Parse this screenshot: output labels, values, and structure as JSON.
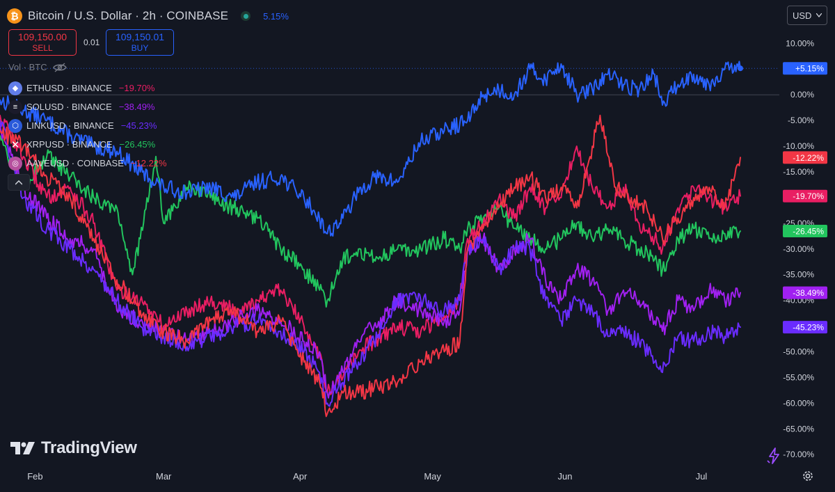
{
  "header": {
    "title": "Bitcoin / U.S. Dollar · 2h · COINBASE",
    "change": "5.15%"
  },
  "trade": {
    "sell_price": "109,150.00",
    "sell_label": "SELL",
    "spread": "0.01",
    "buy_price": "109,150.01",
    "buy_label": "BUY"
  },
  "currency": "USD",
  "vol_label": "Vol · BTC",
  "legend": [
    {
      "symbol": "ETHUSD · BINANCE",
      "value": "−19.70%",
      "color": "#e91e63",
      "icon": "ethereum-icon"
    },
    {
      "symbol": "SOLUSD · BINANCE",
      "value": "−38.49%",
      "color": "#a020f0",
      "icon": "solana-icon"
    },
    {
      "symbol": "LINKUSD · BINANCE",
      "value": "−45.23%",
      "color": "#6a2cff",
      "icon": "chainlink-icon"
    },
    {
      "symbol": "XRPUSD · BINANCE",
      "value": "−26.45%",
      "color": "#22c55e",
      "icon": "xrp-icon"
    },
    {
      "symbol": "AAVEUSD · COINBASE",
      "value": "−12.22%",
      "color": "#f23645",
      "icon": "aave-icon"
    }
  ],
  "logo": "TradingView",
  "chart_data": {
    "type": "line",
    "title": "Bitcoin / U.S. Dollar · 2h · COINBASE",
    "ylabel": "",
    "ylim": [
      -72,
      11
    ],
    "xlim": [
      0,
      100
    ],
    "y_ticks": [
      "10.00%",
      "5.00%",
      "0.00%",
      "-5.00%",
      "-10.00%",
      "-15.00%",
      "-20.00%",
      "-25.00%",
      "-30.00%",
      "-35.00%",
      "-40.00%",
      "-45.00%",
      "-50.00%",
      "-55.00%",
      "-60.00%",
      "-65.00%",
      "-70.00%"
    ],
    "y_tick_values": [
      10,
      5,
      0,
      -5,
      -10,
      -15,
      -20,
      -25,
      -30,
      -35,
      -40,
      -45,
      -50,
      -55,
      -60,
      -65,
      -70
    ],
    "x_ticks": [
      "Feb",
      "Mar",
      "Apr",
      "May",
      "Jun",
      "Jul"
    ],
    "x_tick_values": [
      4.5,
      21,
      38.5,
      55.5,
      72.5,
      90
    ],
    "grid": false,
    "series": [
      {
        "name": "BTCUSD",
        "color": "#2962ff",
        "label": "+5.15%",
        "x": [
          0,
          3,
          6,
          9,
          12,
          15,
          18,
          21,
          24,
          27,
          30,
          33,
          36,
          39,
          41,
          42,
          44,
          46,
          48,
          51,
          54,
          57,
          60,
          62,
          64,
          66,
          68,
          70,
          72,
          74,
          76,
          78,
          80,
          82,
          84,
          85,
          87,
          89,
          91,
          93,
          95
        ],
        "y": [
          -1,
          -3,
          -5,
          -8,
          -10,
          -11,
          -15,
          -18,
          -19,
          -18,
          -20,
          -17,
          -16,
          -20,
          -24,
          -27,
          -24,
          -19,
          -16,
          -17,
          -9,
          -7,
          -5,
          0,
          1,
          0,
          5,
          3,
          6,
          0,
          1,
          4,
          2,
          1,
          4,
          -2,
          2,
          4,
          2,
          5,
          5.15
        ]
      },
      {
        "name": "ETHUSD",
        "color": "#e91e63",
        "label": "-19.70%",
        "x": [
          0,
          3,
          6,
          9,
          12,
          15,
          18,
          21,
          24,
          27,
          30,
          33,
          36,
          39,
          41,
          42,
          44,
          46,
          48,
          51,
          54,
          57,
          59,
          60,
          62,
          64,
          66,
          68,
          70,
          72,
          74,
          76,
          78,
          80,
          82,
          84,
          85,
          87,
          89,
          91,
          93,
          95
        ],
        "y": [
          -4,
          -12,
          -20,
          -18,
          -25,
          -38,
          -40,
          -45,
          -42,
          -40,
          -42,
          -40,
          -38,
          -45,
          -50,
          -58,
          -55,
          -50,
          -48,
          -45,
          -46,
          -43,
          -40,
          -28,
          -25,
          -20,
          -24,
          -18,
          -22,
          -20,
          -10,
          -18,
          -22,
          -18,
          -25,
          -28,
          -30,
          -22,
          -18,
          -20,
          -22,
          -19.7
        ]
      },
      {
        "name": "SOLUSD",
        "color": "#a020f0",
        "label": "-38.49%",
        "x": [
          0,
          3,
          6,
          9,
          12,
          15,
          18,
          21,
          24,
          27,
          30,
          33,
          36,
          39,
          41,
          42,
          44,
          46,
          48,
          51,
          54,
          57,
          59,
          60,
          62,
          64,
          66,
          68,
          70,
          72,
          74,
          76,
          78,
          80,
          82,
          84,
          85,
          87,
          89,
          91,
          93,
          95
        ],
        "y": [
          -6,
          -18,
          -24,
          -28,
          -30,
          -42,
          -44,
          -46,
          -48,
          -46,
          -44,
          -42,
          -44,
          -48,
          -50,
          -58,
          -54,
          -48,
          -45,
          -40,
          -42,
          -44,
          -42,
          -30,
          -28,
          -34,
          -30,
          -28,
          -36,
          -40,
          -34,
          -36,
          -42,
          -38,
          -40,
          -44,
          -46,
          -40,
          -42,
          -38,
          -40,
          -38.5
        ]
      },
      {
        "name": "LINKUSD",
        "color": "#6a2cff",
        "label": "-45.23%",
        "x": [
          0,
          3,
          6,
          9,
          12,
          15,
          18,
          21,
          24,
          27,
          30,
          33,
          36,
          39,
          41,
          42,
          44,
          46,
          48,
          51,
          54,
          57,
          59,
          60,
          62,
          64,
          66,
          68,
          70,
          72,
          74,
          76,
          78,
          80,
          82,
          84,
          85,
          87,
          89,
          91,
          93,
          95
        ],
        "y": [
          -5,
          -20,
          -26,
          -30,
          -34,
          -40,
          -45,
          -47,
          -49,
          -47,
          -45,
          -44,
          -46,
          -50,
          -54,
          -60,
          -56,
          -52,
          -48,
          -40,
          -40,
          -42,
          -40,
          -30,
          -28,
          -34,
          -30,
          -30,
          -40,
          -44,
          -40,
          -42,
          -47,
          -46,
          -48,
          -52,
          -54,
          -47,
          -48,
          -46,
          -47,
          -45.2
        ]
      },
      {
        "name": "XRPUSD",
        "color": "#22c55e",
        "label": "-26.45%",
        "x": [
          0,
          3,
          6,
          9,
          12,
          15,
          17,
          18,
          20,
          21,
          24,
          27,
          30,
          33,
          36,
          39,
          41,
          42,
          44,
          46,
          48,
          51,
          54,
          57,
          59,
          60,
          62,
          64,
          66,
          68,
          70,
          72,
          74,
          76,
          78,
          80,
          82,
          84,
          85,
          87,
          89,
          91,
          93,
          95
        ],
        "y": [
          -8,
          -18,
          -12,
          -16,
          -20,
          -22,
          -35,
          -28,
          -12,
          -25,
          -18,
          -20,
          -22,
          -24,
          -30,
          -34,
          -38,
          -40,
          -32,
          -30,
          -32,
          -30,
          -30,
          -28,
          -30,
          -26,
          -24,
          -22,
          -26,
          -28,
          -30,
          -28,
          -25,
          -28,
          -26,
          -28,
          -30,
          -32,
          -34,
          -28,
          -26,
          -28,
          -27,
          -26.5
        ]
      },
      {
        "name": "AAVEUSD",
        "color": "#f23645",
        "label": "-12.22%",
        "x": [
          0,
          3,
          6,
          9,
          12,
          15,
          18,
          21,
          24,
          27,
          30,
          33,
          36,
          39,
          41,
          42,
          44,
          46,
          48,
          51,
          54,
          57,
          59,
          60,
          62,
          64,
          66,
          68,
          70,
          72,
          74,
          76,
          77,
          79,
          81,
          83,
          85,
          87,
          89,
          91,
          93,
          95
        ],
        "y": [
          -7,
          -10,
          -16,
          -20,
          -28,
          -36,
          -42,
          -46,
          -48,
          -44,
          -42,
          -46,
          -44,
          -52,
          -56,
          -62,
          -58,
          -58,
          -57,
          -56,
          -52,
          -50,
          -48,
          -30,
          -26,
          -22,
          -18,
          -16,
          -20,
          -18,
          -22,
          -10,
          -4,
          -18,
          -20,
          -22,
          -28,
          -24,
          -20,
          -18,
          -22,
          -12.2
        ]
      }
    ]
  }
}
